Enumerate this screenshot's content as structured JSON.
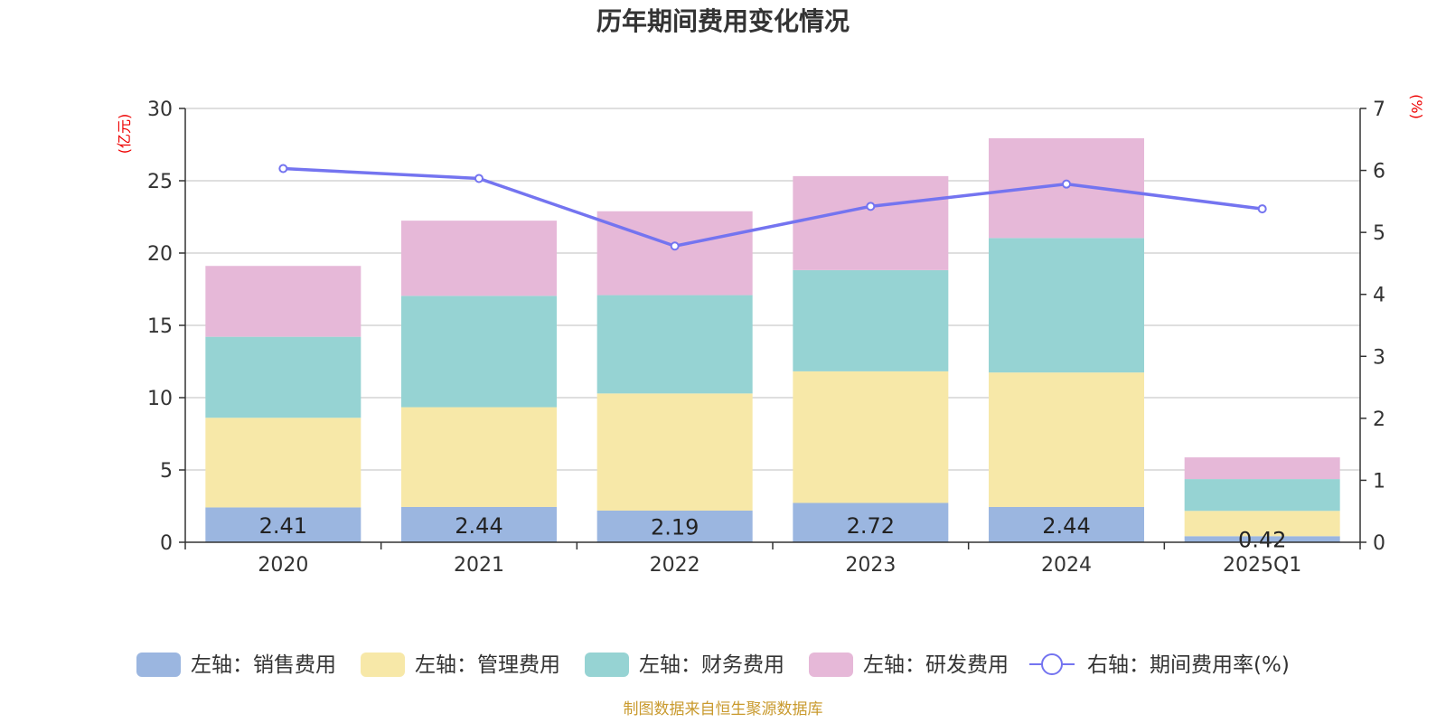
{
  "colors": {
    "sales": "#9bb6e0",
    "admin": "#f7e8a8",
    "finance": "#96d3d3",
    "rd": "#e6b8d8",
    "line": "#7474f0",
    "unit": "#ee0000",
    "source": "#c99a2e",
    "grid": "#cccccc",
    "axis": "#333333"
  },
  "chart_data": {
    "type": "bar",
    "stacked": true,
    "title": "历年期间费用变化情况",
    "categories": [
      "2020",
      "2021",
      "2022",
      "2023",
      "2024",
      "2025Q1"
    ],
    "series": [
      {
        "key": "sales",
        "name": "左轴：销售费用",
        "axis": "left",
        "values": [
          2.41,
          2.44,
          2.19,
          2.72,
          2.44,
          0.42
        ]
      },
      {
        "key": "admin",
        "name": "左轴：管理费用",
        "axis": "left",
        "values": [
          6.2,
          6.9,
          8.1,
          9.1,
          9.3,
          1.75
        ]
      },
      {
        "key": "finance",
        "name": "左轴：财务费用",
        "axis": "left",
        "values": [
          5.6,
          7.7,
          6.8,
          7.0,
          9.3,
          2.2
        ]
      },
      {
        "key": "rd",
        "name": "左轴：研发费用",
        "axis": "left",
        "values": [
          4.9,
          5.2,
          5.8,
          6.5,
          6.9,
          1.5
        ]
      }
    ],
    "line": {
      "key": "rate",
      "name": "右轴：期间费用率(%)",
      "type": "line",
      "axis": "right",
      "values": [
        6.03,
        5.87,
        4.78,
        5.42,
        5.78,
        5.38
      ]
    },
    "data_labels": [
      "2.41",
      "2.44",
      "2.19",
      "2.72",
      "2.44",
      "0.42"
    ],
    "y_left": {
      "unit": "(亿元)",
      "ylim": [
        0,
        30
      ],
      "ticks": [
        "0",
        "5",
        "10",
        "15",
        "20",
        "25",
        "30"
      ]
    },
    "y_right": {
      "unit": "(%)",
      "ylim": [
        0,
        7
      ],
      "ticks": [
        "0",
        "1",
        "2",
        "3",
        "4",
        "5",
        "6",
        "7"
      ]
    },
    "grid": true,
    "legend_position": "bottom"
  },
  "source": "制图数据来自恒生聚源数据库"
}
